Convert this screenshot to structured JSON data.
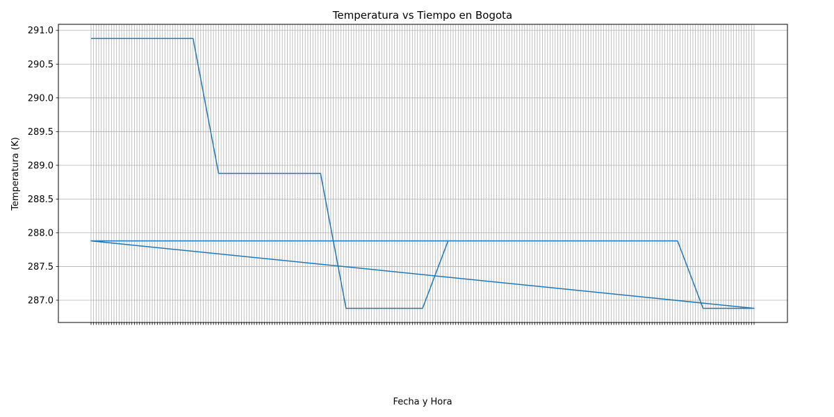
{
  "chart_data": {
    "type": "line",
    "title": "Temperatura vs Tiempo en Bogota",
    "xlabel": "Fecha y Hora",
    "ylabel": "Temperatura (K)",
    "ylim": [
      286.67,
      291.09
    ],
    "yticks": [
      "287.0",
      "287.5",
      "288.0",
      "288.5",
      "289.0",
      "289.5",
      "290.0",
      "290.5",
      "291.0"
    ],
    "grid": true,
    "x_count": 261,
    "x_tick_labels": [],
    "series": [
      {
        "color": "#1f77b4",
        "points": [
          [
            0,
            290.88
          ],
          [
            40,
            290.88
          ],
          [
            50,
            288.88
          ],
          [
            90,
            288.88
          ],
          [
            100,
            286.88
          ],
          [
            130,
            286.88
          ],
          [
            140,
            287.88
          ],
          [
            230,
            287.88
          ],
          [
            240,
            286.88
          ],
          [
            260,
            286.88
          ]
        ],
        "closing_points": [
          [
            0,
            287.88
          ],
          [
            140,
            287.88
          ]
        ]
      }
    ]
  }
}
